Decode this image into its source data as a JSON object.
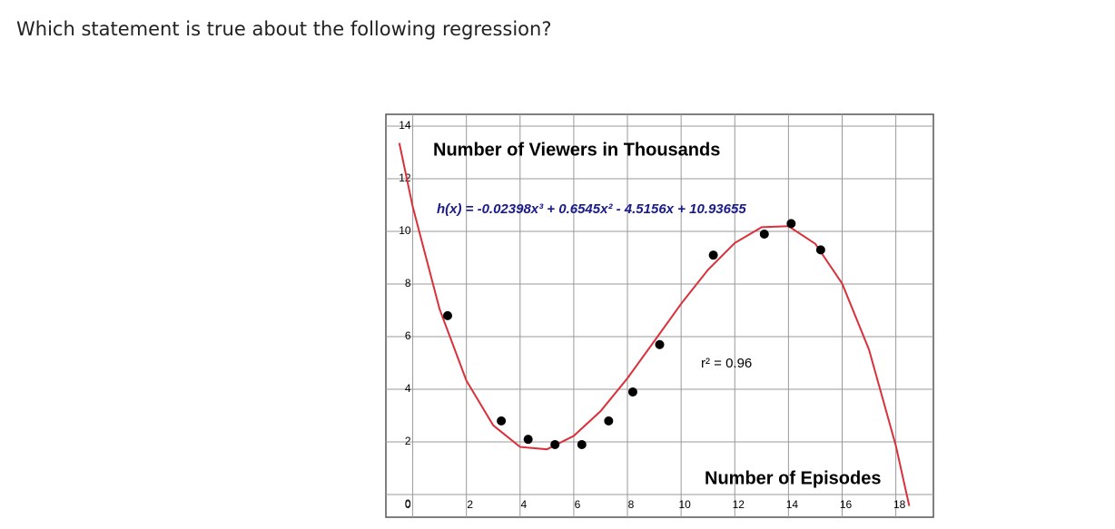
{
  "question": "Which statement is true about the following regression?",
  "chart_data": {
    "type": "scatter",
    "annotations": [
      "Number of Viewers in Thousands",
      "h(x) = -0.02398x³ + 0.6545x² - 4.5156x + 10.93655",
      "r² = 0.96",
      "Number of Episodes"
    ],
    "points": {
      "color": "#000000",
      "x": [
        1.3,
        3.3,
        4.3,
        5.3,
        6.3,
        7.3,
        8.2,
        9.2,
        11.2,
        13.1,
        14.1,
        15.2
      ],
      "y": [
        6.8,
        2.8,
        2.1,
        1.9,
        1.9,
        2.8,
        3.9,
        5.7,
        9.1,
        9.9,
        10.3,
        9.3
      ]
    },
    "curve": {
      "color": "#d9303a",
      "x": [
        -0.5,
        0,
        1,
        2,
        3,
        4,
        5,
        6,
        7,
        8,
        9,
        10,
        11,
        12,
        13,
        14,
        15,
        16,
        17,
        18,
        18.5
      ],
      "y": [
        13.36,
        10.94,
        7.05,
        4.33,
        2.63,
        1.81,
        1.72,
        2.23,
        3.17,
        4.42,
        5.83,
        7.25,
        8.54,
        9.56,
        10.16,
        10.2,
        9.53,
        8.02,
        5.51,
        1.86,
        -0.43
      ]
    },
    "xlim": [
      -1,
      19.4
    ],
    "ylim": [
      -0.86,
      14.45
    ],
    "xticks": [
      0,
      2,
      4,
      6,
      8,
      10,
      12,
      14,
      16,
      18
    ],
    "yticks": [
      0,
      2,
      4,
      6,
      8,
      10,
      12,
      14
    ],
    "grid": true
  }
}
